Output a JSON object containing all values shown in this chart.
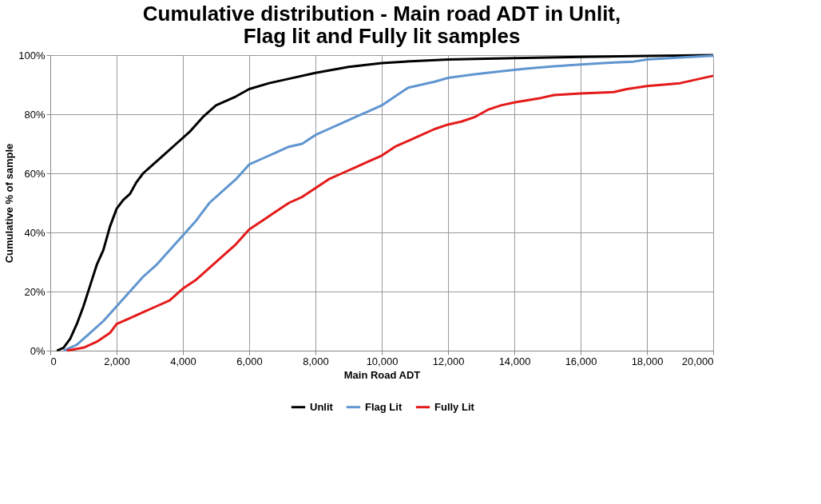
{
  "chart_data": {
    "type": "line",
    "title": "Cumulative distribution - Main road ADT in Unlit,\nFlag lit and Fully lit samples",
    "xlabel": "Main Road ADT",
    "ylabel": "Cumulative % of sample",
    "xlim": [
      0,
      20000
    ],
    "ylim": [
      0,
      100
    ],
    "xticks": [
      {
        "value": 0,
        "label": "0"
      },
      {
        "value": 2000,
        "label": "2,000"
      },
      {
        "value": 4000,
        "label": "4,000"
      },
      {
        "value": 6000,
        "label": "6,000"
      },
      {
        "value": 8000,
        "label": "8,000"
      },
      {
        "value": 10000,
        "label": "10,000"
      },
      {
        "value": 12000,
        "label": "12,000"
      },
      {
        "value": 14000,
        "label": "14,000"
      },
      {
        "value": 16000,
        "label": "16,000"
      },
      {
        "value": 18000,
        "label": "18,000"
      },
      {
        "value": 20000,
        "label": "20,000"
      }
    ],
    "yticks": [
      {
        "value": 0,
        "label": "0%"
      },
      {
        "value": 20,
        "label": "20%"
      },
      {
        "value": 40,
        "label": "40%"
      },
      {
        "value": 60,
        "label": "60%"
      },
      {
        "value": 80,
        "label": "80%"
      },
      {
        "value": 100,
        "label": "100%"
      }
    ],
    "grid": true,
    "legend": "bottom",
    "marker": "none",
    "line_style": "solid",
    "series": [
      {
        "name": "Unlit",
        "color": "#000000",
        "x": [
          200,
          400,
          600,
          800,
          1000,
          1200,
          1400,
          1600,
          1800,
          2000,
          2200,
          2400,
          2600,
          2800,
          3000,
          3400,
          3800,
          4200,
          4600,
          5000,
          5600,
          6000,
          6600,
          7200,
          8000,
          9000,
          10000,
          11000,
          12000,
          14000,
          16000,
          18000,
          20000
        ],
        "values": [
          0,
          1,
          4,
          9,
          15,
          22,
          29,
          34,
          42,
          48,
          51,
          53,
          57,
          60,
          62,
          66,
          70,
          74,
          79,
          83,
          86,
          88.5,
          90.5,
          92,
          94,
          96,
          97.3,
          98,
          98.5,
          99,
          99.4,
          99.7,
          100
        ]
      },
      {
        "name": "Flag Lit",
        "color": "#6095d0",
        "x": [
          400,
          800,
          1200,
          1600,
          2000,
          2400,
          2800,
          3200,
          3600,
          4000,
          4400,
          4800,
          5200,
          5600,
          6000,
          6400,
          6800,
          7200,
          7600,
          8000,
          8400,
          8800,
          9200,
          9600,
          10000,
          10400,
          10800,
          11200,
          11600,
          12000,
          12800,
          13600,
          14400,
          15200,
          16000,
          17000,
          17600,
          18000,
          19000,
          20000
        ],
        "values": [
          0,
          2,
          6,
          10,
          15,
          20,
          25,
          29,
          34,
          39,
          44,
          50,
          54,
          58,
          63,
          65,
          67,
          69,
          70,
          73,
          75,
          77,
          79,
          81,
          83,
          86,
          89,
          90,
          91,
          92.3,
          93.5,
          94.5,
          95.5,
          96.2,
          96.8,
          97.5,
          97.8,
          98.5,
          99.2,
          99.8
        ]
      },
      {
        "name": "Fully Lit",
        "color": "#e41a1a",
        "x": [
          500,
          1000,
          1400,
          1800,
          2000,
          2400,
          2800,
          3200,
          3600,
          4000,
          4400,
          4800,
          5200,
          5600,
          6000,
          6400,
          6800,
          7200,
          7600,
          8000,
          8400,
          8800,
          9200,
          9600,
          10000,
          10400,
          10800,
          11200,
          11600,
          12000,
          12400,
          12800,
          13200,
          13600,
          14000,
          14800,
          15200,
          16000,
          17000,
          17400,
          18000,
          19000,
          20000
        ],
        "values": [
          0,
          1,
          3,
          6,
          9,
          11,
          13,
          15,
          17,
          21,
          24,
          28,
          32,
          36,
          41,
          44,
          47,
          50,
          52,
          55,
          58,
          60,
          62,
          64,
          66,
          69,
          71,
          73,
          75,
          76.5,
          77.5,
          79,
          81.5,
          83,
          84,
          85.5,
          86.5,
          87,
          87.5,
          88.5,
          89.5,
          90.5,
          93
        ]
      }
    ]
  }
}
